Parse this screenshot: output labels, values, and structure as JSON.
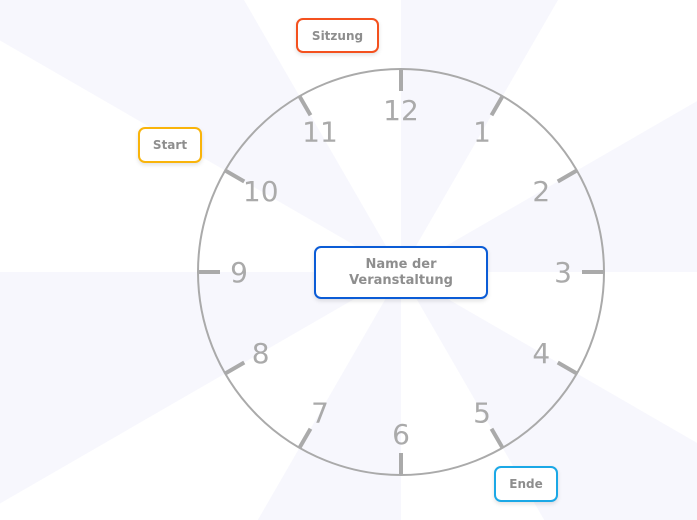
{
  "clock": {
    "numbers": [
      "12",
      "1",
      "2",
      "3",
      "4",
      "5",
      "6",
      "7",
      "8",
      "9",
      "10",
      "11"
    ],
    "face_color": "#aaaaaa",
    "ray_color": "#f7f7fd"
  },
  "nodes": {
    "center": {
      "label_line1": "Name der",
      "label_line2": "Veranstaltung",
      "color": "#0b5cd6"
    },
    "sitzung": {
      "label": "Sitzung",
      "color": "#f4511e"
    },
    "start": {
      "label": "Start",
      "color": "#f9b40a"
    },
    "ende": {
      "label": "Ende",
      "color": "#1ba8e6"
    }
  }
}
